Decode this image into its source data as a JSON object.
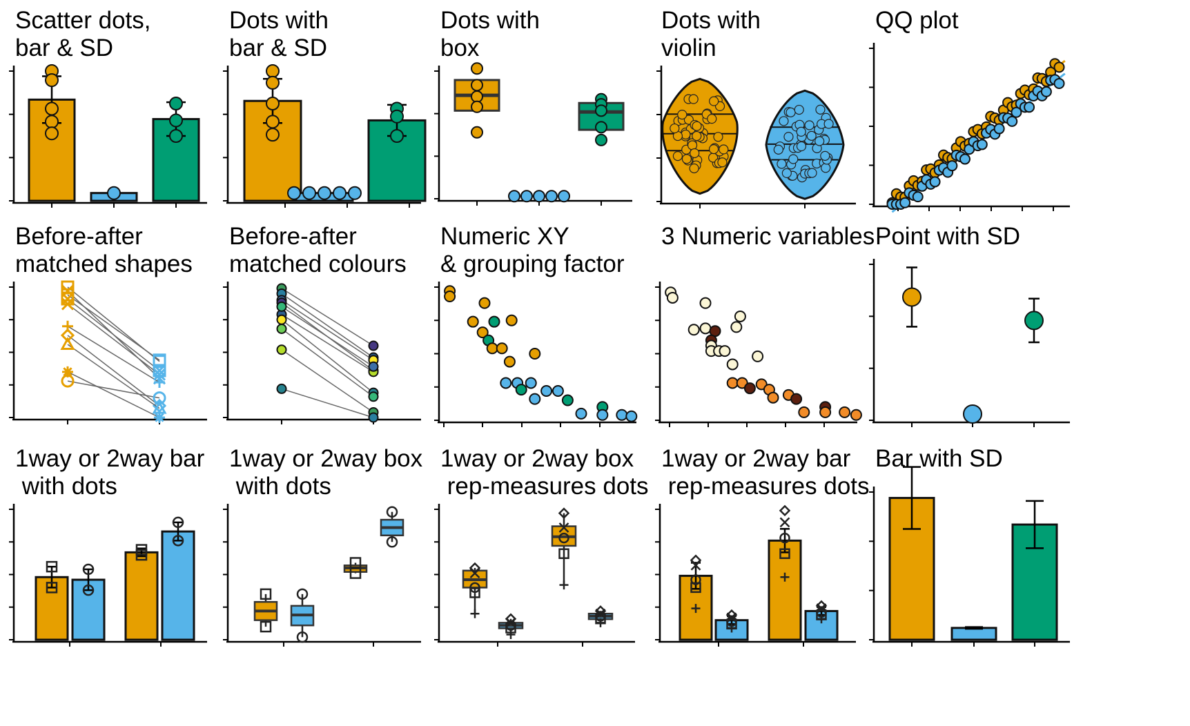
{
  "colors": {
    "orange": "#E69F00",
    "blue": "#56B4E9",
    "green": "#009E73",
    "dark": "#1a1a1a",
    "line": "#666666"
  },
  "panels": [
    {
      "title": "Scatter dots,\nbar & SD"
    },
    {
      "title": "Dots with\nbar & SD"
    },
    {
      "title": "Dots with\nbox"
    },
    {
      "title": "Dots with\nviolin"
    },
    {
      "title": "QQ plot"
    },
    {
      "title": "Before-after\nmatched shapes"
    },
    {
      "title": "Before-after\nmatched colours"
    },
    {
      "title": "Numeric XY\n& grouping factor"
    },
    {
      "title": "3 Numeric variables"
    },
    {
      "title": "Point with SD"
    },
    {
      "title": "1way or 2way bar\n with dots"
    },
    {
      "title": "1way or 2way box\n with dots"
    },
    {
      "title": "1way or 2way box\n rep-measures dots"
    },
    {
      "title": "1way or 2way bar\n rep-measures dots"
    },
    {
      "title": "Bar with SD"
    }
  ],
  "chart_data": [
    {
      "type": "bar",
      "ylim": [
        0,
        10
      ],
      "bars": [
        {
          "value": 7.8,
          "sd": 1.8,
          "color": "orange",
          "dots": [
            10,
            9.3,
            7.1,
            6.1,
            5.2
          ]
        },
        {
          "value": 0.6,
          "sd": 0,
          "color": "blue",
          "dots": [
            0.6
          ]
        },
        {
          "value": 6.3,
          "sd": 1.3,
          "color": "green",
          "dots": [
            7.5,
            6.2,
            5.0
          ]
        }
      ]
    },
    {
      "type": "bar",
      "ylim": [
        0,
        10
      ],
      "bars": [
        {
          "value": 7.7,
          "sd": 1.7,
          "color": "orange",
          "dots": [
            10,
            9.1,
            7.5,
            6.1,
            5.1
          ]
        },
        {
          "value": 0.6,
          "sd": 0,
          "color": "blue",
          "dots": [
            0.6,
            0.6,
            0.6,
            0.6,
            0.6
          ],
          "spread": 0.36
        },
        {
          "value": 6.2,
          "sd": 1.2,
          "color": "green",
          "dots": [
            7.1,
            6.5,
            5.0
          ]
        }
      ]
    },
    {
      "type": "box",
      "ylim": [
        0,
        10
      ],
      "boxes": [
        {
          "q1": 6.9,
          "med": 8.1,
          "q3": 9.3,
          "color": "orange",
          "dots": [
            10.2,
            8.9,
            8.0,
            7.2,
            5.2
          ]
        },
        {
          "q1": 0.2,
          "med": 0.2,
          "q3": 0.2,
          "color": "blue",
          "dots": [
            0.2,
            0.2,
            0.2,
            0.2,
            0.2
          ],
          "spread": 0.34
        },
        {
          "q1": 5.4,
          "med": 6.8,
          "q3": 7.5,
          "color": "green",
          "dots": [
            7.8,
            7.4,
            6.9,
            5.6,
            4.6
          ]
        }
      ]
    },
    {
      "type": "violin",
      "ylim": [
        0,
        10
      ],
      "groups": [
        {
          "color": "orange",
          "min": 0.6,
          "max": 9.4,
          "q1": 3.9,
          "med": 5.2,
          "q3": 6.7,
          "dots": 48
        },
        {
          "color": "blue",
          "min": 0.2,
          "max": 8.5,
          "q1": 3.2,
          "med": 4.4,
          "q3": 5.7,
          "dots": 44
        }
      ]
    },
    {
      "type": "scatter",
      "xlim": [
        -2.4,
        2.4
      ],
      "ylim": [
        0,
        10
      ],
      "series": [
        {
          "color": "orange",
          "intercept": 5.6,
          "slope": 2.0
        },
        {
          "color": "blue",
          "intercept": 4.9,
          "slope": 1.95
        }
      ]
    },
    {
      "type": "line",
      "ylim": [
        0,
        10
      ],
      "pairs": [
        [
          10.0,
          4.3
        ],
        [
          9.7,
          3.0
        ],
        [
          9.4,
          4.4
        ],
        [
          9.1,
          3.6
        ],
        [
          7.0,
          2.7
        ],
        [
          6.3,
          0.9
        ],
        [
          5.6,
          0.7
        ],
        [
          3.5,
          -0.4
        ],
        [
          2.8,
          1.5
        ],
        [
          8.7,
          3.3
        ]
      ]
    },
    {
      "type": "line",
      "ylim": [
        0,
        10
      ],
      "pairs": [
        [
          9.9,
          5.5
        ],
        [
          9.5,
          4.6
        ],
        [
          9.0,
          4.4
        ],
        [
          8.8,
          3.6
        ],
        [
          7.9,
          3.5
        ],
        [
          7.5,
          1.9
        ],
        [
          6.8,
          1.6
        ],
        [
          5.2,
          0.4
        ],
        [
          2.2,
          0.0
        ],
        [
          8.5,
          3.9
        ]
      ]
    },
    {
      "type": "scatter",
      "xlim": [
        0,
        10
      ],
      "ylim": [
        0,
        10
      ],
      "points": [
        [
          0.2,
          9.7,
          "orange"
        ],
        [
          0.2,
          9.3,
          "orange"
        ],
        [
          2.0,
          8.8,
          "orange"
        ],
        [
          1.4,
          7.4,
          "orange"
        ],
        [
          2.5,
          7.4,
          "green"
        ],
        [
          3.4,
          7.5,
          "orange"
        ],
        [
          1.9,
          6.6,
          "orange"
        ],
        [
          2.2,
          6.0,
          "green"
        ],
        [
          2.4,
          5.4,
          "orange"
        ],
        [
          2.9,
          5.4,
          "orange"
        ],
        [
          3.3,
          4.4,
          "orange"
        ],
        [
          4.6,
          5.0,
          "orange"
        ],
        [
          3.1,
          2.8,
          "blue"
        ],
        [
          3.7,
          2.8,
          "blue"
        ],
        [
          3.9,
          2.3,
          "green"
        ],
        [
          4.4,
          2.8,
          "blue"
        ],
        [
          4.6,
          1.6,
          "blue"
        ],
        [
          5.2,
          2.2,
          "blue"
        ],
        [
          5.8,
          2.2,
          "blue"
        ],
        [
          6.3,
          1.5,
          "green"
        ],
        [
          7.0,
          0.5,
          "blue"
        ],
        [
          8.1,
          1.0,
          "green"
        ],
        [
          8.1,
          0.4,
          "blue"
        ],
        [
          9.1,
          0.4,
          "blue"
        ],
        [
          9.6,
          0.3,
          "blue"
        ]
      ]
    },
    {
      "type": "scatter",
      "xlim": [
        0,
        10
      ],
      "ylim": [
        0,
        10
      ],
      "points": [
        [
          0.2,
          9.6,
          "cream"
        ],
        [
          0.3,
          9.2,
          "cream"
        ],
        [
          2.0,
          8.8,
          "cream"
        ],
        [
          3.8,
          7.8,
          "cream"
        ],
        [
          3.6,
          7.0,
          "cream"
        ],
        [
          1.4,
          6.8,
          "cream"
        ],
        [
          2.0,
          6.9,
          "cream"
        ],
        [
          2.5,
          6.7,
          "dark"
        ],
        [
          2.3,
          6.0,
          "dark"
        ],
        [
          2.3,
          5.6,
          "cream"
        ],
        [
          2.3,
          5.2,
          "cream"
        ],
        [
          2.7,
          5.2,
          "cream"
        ],
        [
          3.0,
          5.2,
          "cream"
        ],
        [
          3.4,
          4.2,
          "cream"
        ],
        [
          4.7,
          4.8,
          "cream"
        ],
        [
          3.4,
          2.8,
          "orange"
        ],
        [
          3.9,
          2.8,
          "orange"
        ],
        [
          4.3,
          2.4,
          "dark"
        ],
        [
          4.9,
          2.7,
          "orange"
        ],
        [
          5.3,
          2.3,
          "orange"
        ],
        [
          5.5,
          1.7,
          "orange"
        ],
        [
          6.3,
          1.9,
          "orange"
        ],
        [
          6.7,
          1.6,
          "dark"
        ],
        [
          7.1,
          0.6,
          "orange"
        ],
        [
          8.2,
          1.0,
          "dark"
        ],
        [
          8.2,
          0.6,
          "orange"
        ],
        [
          9.2,
          0.6,
          "orange"
        ],
        [
          9.8,
          0.4,
          "orange"
        ]
      ]
    },
    {
      "type": "scatter",
      "ylim": [
        0,
        10
      ],
      "points": [
        {
          "mean": 7.9,
          "sd": 1.9,
          "color": "orange"
        },
        {
          "mean": 0.4,
          "sd": 0,
          "color": "blue"
        },
        {
          "mean": 6.4,
          "sd": 1.4,
          "color": "green"
        }
      ]
    },
    {
      "type": "bar",
      "ylim": [
        0,
        10
      ],
      "bars": [
        {
          "value": 4.8,
          "sd": 0.8,
          "color": "orange",
          "dots": [
            5.6,
            4.0
          ]
        },
        {
          "value": 4.6,
          "sd": 0.8,
          "color": "blue",
          "dots": [
            5.4,
            3.8
          ]
        },
        {
          "value": 6.7,
          "sd": 0.3,
          "color": "orange",
          "dots": [
            6.9,
            6.5
          ]
        },
        {
          "value": 8.3,
          "sd": 0.7,
          "color": "blue",
          "dots": [
            9.0,
            7.6
          ]
        }
      ]
    },
    {
      "type": "box",
      "ylim": [
        0,
        10
      ],
      "boxes": [
        {
          "q1": 1.5,
          "med": 2.2,
          "q3": 2.9,
          "color": "orange",
          "dots": [
            3.5,
            1.0
          ]
        },
        {
          "q1": 1.1,
          "med": 1.9,
          "q3": 2.6,
          "color": "blue",
          "dots": [
            3.5,
            0.2
          ]
        },
        {
          "q1": 5.2,
          "med": 5.5,
          "q3": 5.7,
          "color": "orange",
          "dots": [
            5.9,
            5.1
          ]
        },
        {
          "q1": 8.0,
          "med": 8.6,
          "q3": 9.2,
          "color": "blue",
          "dots": [
            9.8,
            7.5
          ]
        }
      ]
    },
    {
      "type": "box",
      "ylim": [
        0,
        10
      ],
      "boxes": [
        {
          "q1": 4.0,
          "med": 4.6,
          "q3": 5.3,
          "color": "orange",
          "marks": [
            5.5,
            5.1,
            4.0,
            3.6,
            2.0
          ]
        },
        {
          "q1": 0.9,
          "med": 1.1,
          "q3": 1.3,
          "color": "blue",
          "marks": [
            1.6,
            1.3,
            1.1,
            0.9,
            0.4
          ]
        },
        {
          "q1": 7.2,
          "med": 7.9,
          "q3": 8.7,
          "color": "orange",
          "marks": [
            9.7,
            8.6,
            7.8,
            6.6,
            4.2
          ]
        },
        {
          "q1": 1.6,
          "med": 1.8,
          "q3": 2.0,
          "color": "blue",
          "marks": [
            2.2,
            2.0,
            1.8,
            1.6,
            1.3
          ]
        }
      ]
    },
    {
      "type": "bar",
      "ylim": [
        0,
        10
      ],
      "bars": [
        {
          "value": 4.9,
          "sd": 1.0,
          "color": "orange",
          "marks": [
            6.1,
            5.7,
            4.6,
            4.0,
            2.4
          ]
        },
        {
          "value": 1.5,
          "sd": 0.3,
          "color": "blue",
          "marks": [
            1.9,
            1.7,
            1.4,
            1.2,
            0.9
          ]
        },
        {
          "value": 7.6,
          "sd": 0.9,
          "color": "orange",
          "marks": [
            9.9,
            9.0,
            7.8,
            6.6,
            4.8
          ]
        },
        {
          "value": 2.2,
          "sd": 0.3,
          "color": "blue",
          "marks": [
            2.6,
            2.4,
            2.1,
            1.9,
            1.6
          ]
        }
      ]
    },
    {
      "type": "bar",
      "ylim": [
        0,
        10
      ],
      "bars": [
        {
          "value": 9.6,
          "sd": 2.1,
          "color": "orange"
        },
        {
          "value": 0.8,
          "sd": 0.06,
          "color": "blue"
        },
        {
          "value": 7.8,
          "sd": 1.6,
          "color": "green"
        }
      ]
    }
  ]
}
